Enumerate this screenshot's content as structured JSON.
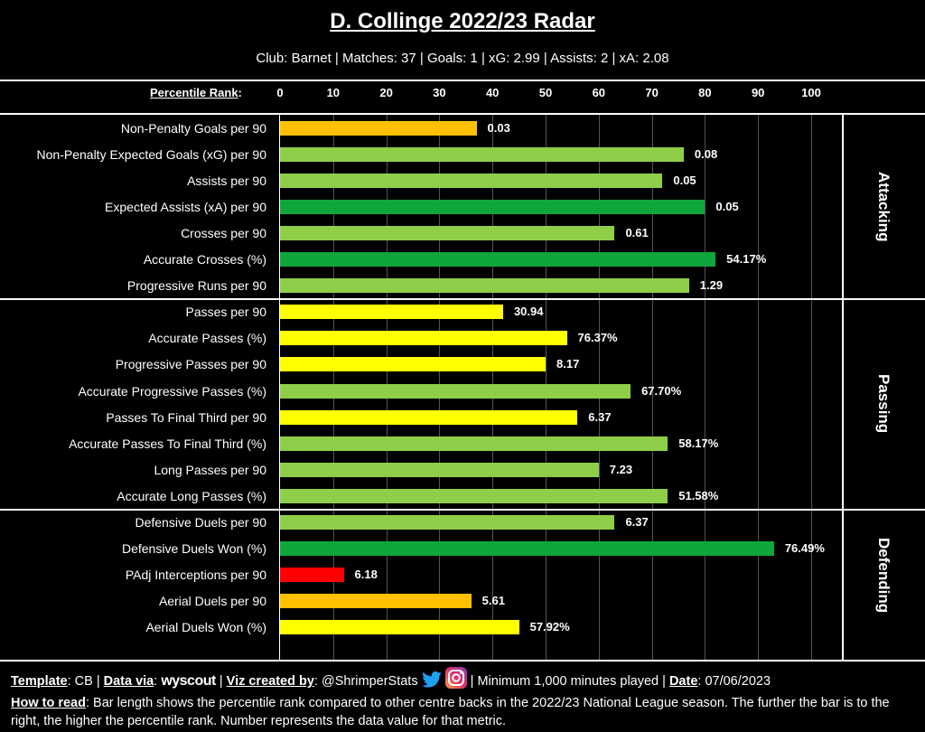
{
  "title": "D. Collinge 2022/23 Radar",
  "subtitle": "Club: Barnet | Matches: 37 | Goals: 1 | xG: 2.99 | Assists: 2 | xA: 2.08",
  "axis": {
    "label": "Percentile Rank",
    "ticks": [
      "0",
      "10",
      "20",
      "30",
      "40",
      "50",
      "60",
      "70",
      "80",
      "90",
      "100"
    ]
  },
  "colors": {
    "dark_green": "#0fa63b",
    "light_green": "#8fce48",
    "yellow": "#ffff00",
    "orange": "#ffc000",
    "red": "#ff0000"
  },
  "chart_data": {
    "type": "bar",
    "orientation": "horizontal",
    "title": "D. Collinge 2022/23 Radar",
    "xlabel": "Percentile Rank",
    "xlim": [
      0,
      100
    ],
    "grid": true,
    "sections": [
      {
        "name": "Attacking",
        "metrics": [
          {
            "label": "Non-Penalty Goals per 90",
            "percentile": 37,
            "value": "0.03",
            "color": "orange"
          },
          {
            "label": "Non-Penalty Expected Goals (xG) per 90",
            "percentile": 76,
            "value": "0.08",
            "color": "light_green"
          },
          {
            "label": "Assists per 90",
            "percentile": 72,
            "value": "0.05",
            "color": "light_green"
          },
          {
            "label": "Expected Assists (xA) per 90",
            "percentile": 80,
            "value": "0.05",
            "color": "dark_green"
          },
          {
            "label": "Crosses per 90",
            "percentile": 63,
            "value": "0.61",
            "color": "light_green"
          },
          {
            "label": "Accurate Crosses (%)",
            "percentile": 82,
            "value": "54.17%",
            "color": "dark_green"
          },
          {
            "label": "Progressive Runs per 90",
            "percentile": 77,
            "value": "1.29",
            "color": "light_green"
          }
        ]
      },
      {
        "name": "Passing",
        "metrics": [
          {
            "label": "Passes per 90",
            "percentile": 42,
            "value": "30.94",
            "color": "yellow"
          },
          {
            "label": "Accurate Passes (%)",
            "percentile": 54,
            "value": "76.37%",
            "color": "yellow"
          },
          {
            "label": "Progressive Passes per 90",
            "percentile": 50,
            "value": "8.17",
            "color": "yellow"
          },
          {
            "label": "Accurate Progressive Passes (%)",
            "percentile": 66,
            "value": "67.70%",
            "color": "light_green"
          },
          {
            "label": "Passes To Final Third per 90",
            "percentile": 56,
            "value": "6.37",
            "color": "yellow"
          },
          {
            "label": "Accurate Passes To Final Third (%)",
            "percentile": 73,
            "value": "58.17%",
            "color": "light_green"
          },
          {
            "label": "Long Passes per 90",
            "percentile": 60,
            "value": "7.23",
            "color": "light_green"
          },
          {
            "label": "Accurate Long Passes (%)",
            "percentile": 73,
            "value": "51.58%",
            "color": "light_green"
          }
        ]
      },
      {
        "name": "Defending",
        "metrics": [
          {
            "label": "Defensive Duels per 90",
            "percentile": 63,
            "value": "6.37",
            "color": "light_green"
          },
          {
            "label": "Defensive Duels Won (%)",
            "percentile": 93,
            "value": "76.49%",
            "color": "dark_green"
          },
          {
            "label": "PAdj Interceptions per 90",
            "percentile": 12,
            "value": "6.18",
            "color": "red"
          },
          {
            "label": "Aerial Duels per 90",
            "percentile": 36,
            "value": "5.61",
            "color": "orange"
          },
          {
            "label": "Aerial Duels Won (%)",
            "percentile": 45,
            "value": "57.92%",
            "color": "yellow"
          }
        ]
      }
    ]
  },
  "footer": {
    "template_label": "Template",
    "template_value": ": CB | ",
    "data_via_label": "Data via",
    "data_via_sep": ": ",
    "data_source": "wyscout",
    "viz_label": "Viz created by",
    "viz_value": ": @ShrimperStats",
    "min_minutes": " | Minimum 1,000 minutes played | ",
    "date_label": "Date",
    "date_value": ": 07/06/2023",
    "how_label": "How to read",
    "how_text": ": Bar length shows the percentile rank compared to other centre backs in the 2022/23 National League season. The further the bar is to the right, the higher the percentile rank. Number represents the data value for that metric."
  }
}
